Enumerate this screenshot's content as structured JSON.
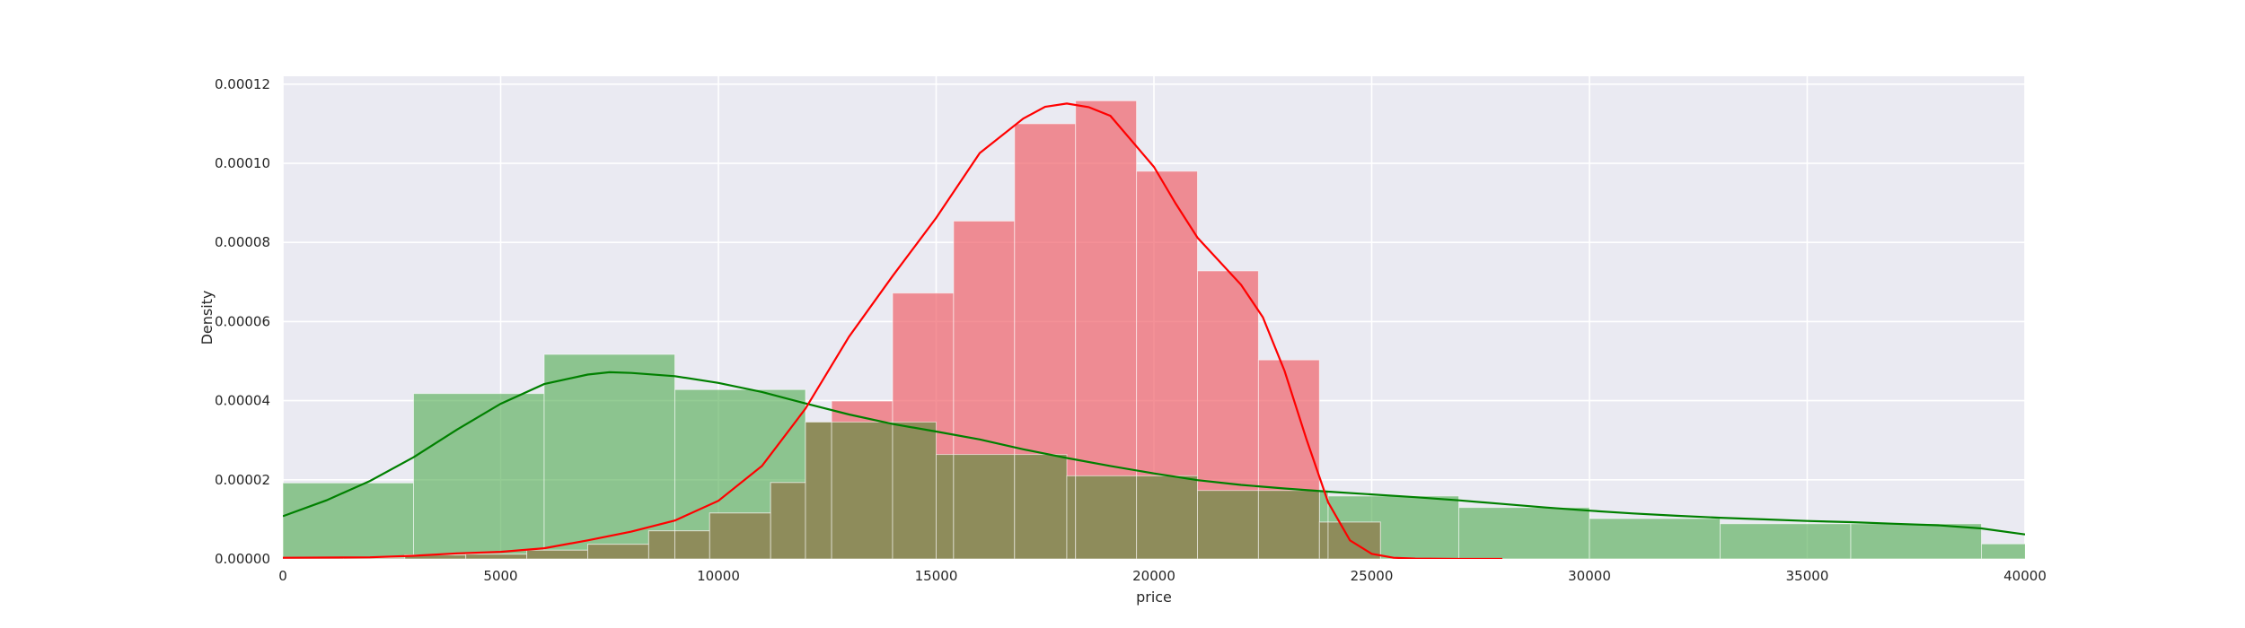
{
  "chart_data": {
    "type": "histogram",
    "xlabel": "price",
    "ylabel": "Density",
    "xlim": [
      0,
      40000
    ],
    "ylim": [
      0,
      0.000122
    ],
    "x_ticks": [
      0,
      5000,
      10000,
      15000,
      20000,
      25000,
      30000,
      35000,
      40000
    ],
    "x_tick_labels": [
      "0",
      "5000",
      "10000",
      "15000",
      "20000",
      "25000",
      "30000",
      "35000",
      "40000"
    ],
    "y_ticks": [
      0,
      2e-05,
      4e-05,
      6e-05,
      8e-05,
      0.0001,
      0.00012
    ],
    "y_tick_labels": [
      "0.00000",
      "0.00002",
      "0.00004",
      "0.00006",
      "0.00008",
      "0.00010",
      "0.00012"
    ],
    "grid": true,
    "background": "#eaeaf2",
    "series": [
      {
        "color": "#4daa4d",
        "opacity": 0.6,
        "bins": [
          {
            "start": 0,
            "end": 3000,
            "density": 1.92e-05
          },
          {
            "start": 3000,
            "end": 6000,
            "density": 4.18e-05
          },
          {
            "start": 6000,
            "end": 9000,
            "density": 5.17e-05
          },
          {
            "start": 9000,
            "end": 12000,
            "density": 4.28e-05
          },
          {
            "start": 12000,
            "end": 15000,
            "density": 3.46e-05
          },
          {
            "start": 15000,
            "end": 18000,
            "density": 2.64e-05
          },
          {
            "start": 18000,
            "end": 21000,
            "density": 2.1e-05
          },
          {
            "start": 21000,
            "end": 24000,
            "density": 1.73e-05
          },
          {
            "start": 24000,
            "end": 27000,
            "density": 1.59e-05
          },
          {
            "start": 27000,
            "end": 30000,
            "density": 1.3e-05
          },
          {
            "start": 30000,
            "end": 33000,
            "density": 1.02e-05
          },
          {
            "start": 33000,
            "end": 36000,
            "density": 8.9e-06
          },
          {
            "start": 36000,
            "end": 39000,
            "density": 8.9e-06
          },
          {
            "start": 39000,
            "end": 42000,
            "density": 3.8e-06
          }
        ],
        "kde_x": [
          0,
          1000,
          2000,
          3000,
          4000,
          5000,
          6000,
          7000,
          7500,
          8000,
          9000,
          10000,
          11000,
          12000,
          13000,
          14000,
          15000,
          16000,
          17000,
          18000,
          19000,
          20000,
          21000,
          22000,
          23000,
          24000,
          25000,
          26000,
          27000,
          28000,
          29000,
          30000,
          31000,
          32000,
          33000,
          34000,
          35000,
          36000,
          37000,
          38000,
          39000,
          40000
        ],
        "kde_y": [
          1.08e-05,
          1.48e-05,
          1.97e-05,
          2.57e-05,
          3.27e-05,
          3.92e-05,
          4.42e-05,
          4.66e-05,
          4.72e-05,
          4.7e-05,
          4.62e-05,
          4.45e-05,
          4.22e-05,
          3.93e-05,
          3.65e-05,
          3.41e-05,
          3.22e-05,
          3.02e-05,
          2.77e-05,
          2.55e-05,
          2.35e-05,
          2.16e-05,
          1.99e-05,
          1.87e-05,
          1.78e-05,
          1.7e-05,
          1.63e-05,
          1.56e-05,
          1.48e-05,
          1.39e-05,
          1.3e-05,
          1.22e-05,
          1.15e-05,
          1.09e-05,
          1.04e-05,
          1e-05,
          9.6e-06,
          9.3e-06,
          8.9e-06,
          8.5e-06,
          7.7e-06,
          6.2e-06
        ]
      },
      {
        "color": "#f0636b",
        "opacity": 0.7,
        "bins": [
          {
            "start": 0,
            "end": 1400,
            "density": 2e-07
          },
          {
            "start": 1400,
            "end": 2800,
            "density": 2e-07
          },
          {
            "start": 2800,
            "end": 4200,
            "density": 1e-06
          },
          {
            "start": 4200,
            "end": 5600,
            "density": 1.2e-06
          },
          {
            "start": 5600,
            "end": 7000,
            "density": 2.2e-06
          },
          {
            "start": 7000,
            "end": 8400,
            "density": 3.7e-06
          },
          {
            "start": 8400,
            "end": 9800,
            "density": 7.1e-06
          },
          {
            "start": 9800,
            "end": 11200,
            "density": 1.16e-05
          },
          {
            "start": 11200,
            "end": 12600,
            "density": 1.93e-05
          },
          {
            "start": 12600,
            "end": 14000,
            "density": 3.99e-05
          },
          {
            "start": 14000,
            "end": 15400,
            "density": 6.72e-05
          },
          {
            "start": 15400,
            "end": 16800,
            "density": 8.54e-05
          },
          {
            "start": 16800,
            "end": 18200,
            "density": 0.00011
          },
          {
            "start": 18200,
            "end": 19600,
            "density": 0.0001158
          },
          {
            "start": 19600,
            "end": 21000,
            "density": 9.8e-05
          },
          {
            "start": 21000,
            "end": 22400,
            "density": 7.28e-05
          },
          {
            "start": 22400,
            "end": 23800,
            "density": 5.03e-05
          },
          {
            "start": 23800,
            "end": 25200,
            "density": 9.3e-06
          }
        ],
        "kde_x": [
          0,
          2000,
          3000,
          4000,
          5000,
          6000,
          7000,
          8000,
          9000,
          10000,
          11000,
          12000,
          13000,
          14000,
          15000,
          16000,
          17000,
          17500,
          18000,
          18500,
          19000,
          20000,
          20500,
          21000,
          22000,
          22500,
          23000,
          23500,
          24000,
          24500,
          25000,
          25500,
          26000,
          27000,
          28000
        ],
        "kde_y": [
          3e-07,
          4e-07,
          8e-07,
          1.4e-06,
          1.8e-06,
          2.7e-06,
          4.7e-06,
          6.9e-06,
          9.7e-06,
          1.47e-05,
          2.35e-05,
          3.8e-05,
          5.62e-05,
          7.15e-05,
          8.62e-05,
          0.0001026,
          0.0001113,
          0.0001143,
          0.0001151,
          0.0001142,
          0.000112,
          9.91e-05,
          8.98e-05,
          8.12e-05,
          6.93e-05,
          6.11e-05,
          4.75e-05,
          3.03e-05,
          1.43e-05,
          4.7e-06,
          1.3e-06,
          3e-07,
          1e-07,
          0.0,
          0.0
        ]
      },
      {
        "color": "#8e8c5b",
        "opacity": 1.0,
        "bins": [
          {
            "start": 0,
            "end": 1400,
            "density": 2e-07
          },
          {
            "start": 1400,
            "end": 2800,
            "density": 2e-07
          },
          {
            "start": 2800,
            "end": 4200,
            "density": 1e-06
          },
          {
            "start": 4200,
            "end": 5600,
            "density": 1.2e-06
          },
          {
            "start": 5600,
            "end": 7000,
            "density": 2.2e-06
          },
          {
            "start": 7000,
            "end": 8400,
            "density": 3.7e-06
          },
          {
            "start": 8400,
            "end": 9000,
            "density": 7.1e-06
          },
          {
            "start": 9000,
            "end": 9800,
            "density": 7.1e-06
          },
          {
            "start": 9800,
            "end": 11200,
            "density": 1.16e-05
          },
          {
            "start": 11200,
            "end": 12000,
            "density": 1.93e-05
          },
          {
            "start": 12000,
            "end": 12600,
            "density": 3.46e-05
          },
          {
            "start": 12600,
            "end": 14000,
            "density": 3.46e-05
          },
          {
            "start": 14000,
            "end": 15000,
            "density": 3.46e-05
          },
          {
            "start": 15000,
            "end": 15400,
            "density": 2.64e-05
          },
          {
            "start": 15400,
            "end": 16800,
            "density": 2.64e-05
          },
          {
            "start": 16800,
            "end": 18000,
            "density": 2.64e-05
          },
          {
            "start": 18000,
            "end": 18200,
            "density": 2.1e-05
          },
          {
            "start": 18200,
            "end": 19600,
            "density": 2.1e-05
          },
          {
            "start": 19600,
            "end": 21000,
            "density": 2.1e-05
          },
          {
            "start": 21000,
            "end": 22400,
            "density": 1.73e-05
          },
          {
            "start": 22400,
            "end": 23800,
            "density": 1.73e-05
          },
          {
            "start": 23800,
            "end": 24000,
            "density": 9.3e-06
          },
          {
            "start": 24000,
            "end": 25200,
            "density": 9.3e-06
          }
        ],
        "kde_x": [],
        "kde_y": []
      }
    ]
  }
}
